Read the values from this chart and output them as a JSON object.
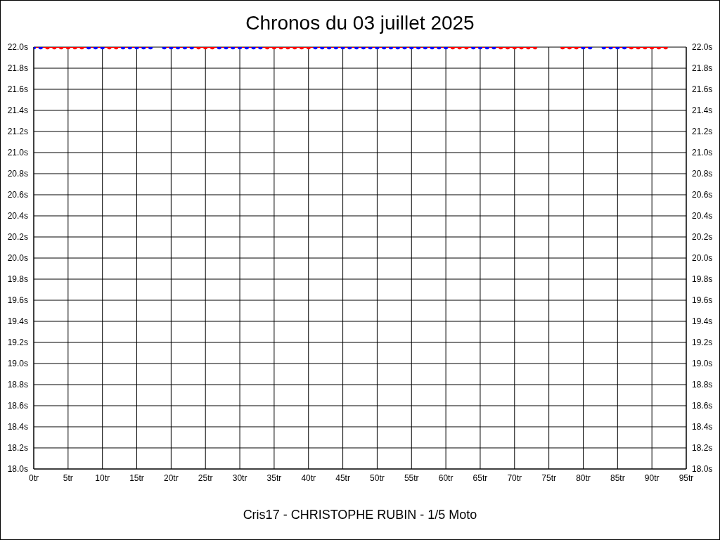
{
  "chart_data": {
    "type": "line",
    "title": "Chronos du 03 juillet 2025",
    "annotations": [
      "Cris17 - CHRISTOPHE RUBIN - 1/5 Moto"
    ],
    "x": [
      0,
      1,
      2,
      3,
      4,
      5,
      6,
      7,
      8,
      9,
      10,
      11,
      12,
      13,
      14,
      15,
      16,
      17,
      18,
      19,
      20,
      21,
      22,
      23,
      24,
      25,
      26,
      27,
      28,
      29,
      30,
      31,
      32,
      33,
      34,
      35,
      36,
      37,
      38,
      39,
      40,
      41,
      42,
      43,
      44,
      45,
      46,
      47,
      48,
      49,
      50,
      51,
      52,
      53,
      54,
      55,
      56,
      57,
      58,
      59,
      60,
      61,
      62,
      63,
      64,
      65,
      66,
      67,
      68,
      69,
      70,
      71,
      72,
      73,
      74,
      75,
      76,
      77,
      78,
      79,
      80,
      81,
      82,
      83,
      84,
      85,
      86,
      87,
      88,
      89,
      90,
      91,
      92
    ],
    "series": [
      {
        "color": "#ff0000",
        "values": [
          22,
          22,
          22,
          22,
          22,
          22,
          22,
          22,
          22,
          22,
          22,
          22,
          22,
          22,
          22,
          22,
          22,
          22,
          null,
          22,
          22,
          22,
          22,
          22,
          22,
          22,
          22,
          22,
          22,
          22,
          22,
          22,
          22,
          22,
          22,
          22,
          22,
          22,
          22,
          22,
          22,
          22,
          22,
          22,
          22,
          22,
          22,
          22,
          22,
          22,
          22,
          22,
          22,
          22,
          22,
          22,
          22,
          22,
          22,
          22,
          22,
          22,
          22,
          22,
          22,
          22,
          22,
          22,
          22,
          22,
          22,
          22,
          22,
          22,
          null,
          null,
          null,
          22,
          22,
          22,
          22,
          22,
          null,
          22,
          22,
          22,
          22,
          22,
          22,
          22,
          22,
          22,
          22
        ],
        "colors": [
          "#0000ff",
          "#0000ff",
          "#ff0000",
          "#ff0000",
          "#ff0000",
          "#ff0000",
          "#ff0000",
          "#ff0000",
          "#0000ff",
          "#0000ff",
          "#0000ff",
          "#ff0000",
          "#ff0000",
          "#0000ff",
          "#0000ff",
          "#0000ff",
          "#0000ff",
          "#0000ff",
          null,
          "#0000ff",
          "#0000ff",
          "#0000ff",
          "#0000ff",
          "#0000ff",
          "#ff0000",
          "#ff0000",
          "#ff0000",
          "#0000ff",
          "#0000ff",
          "#0000ff",
          "#0000ff",
          "#0000ff",
          "#0000ff",
          "#0000ff",
          "#ff0000",
          "#ff0000",
          "#ff0000",
          "#ff0000",
          "#ff0000",
          "#ff0000",
          "#ff0000",
          "#0000ff",
          "#0000ff",
          "#0000ff",
          "#0000ff",
          "#0000ff",
          "#0000ff",
          "#0000ff",
          "#0000ff",
          "#0000ff",
          "#0000ff",
          "#0000ff",
          "#0000ff",
          "#0000ff",
          "#0000ff",
          "#0000ff",
          "#0000ff",
          "#0000ff",
          "#0000ff",
          "#0000ff",
          "#0000ff",
          "#ff0000",
          "#ff0000",
          "#ff0000",
          "#0000ff",
          "#0000ff",
          "#0000ff",
          "#0000ff",
          "#ff0000",
          "#ff0000",
          "#ff0000",
          "#ff0000",
          "#ff0000",
          "#ff0000",
          null,
          null,
          null,
          "#ff0000",
          "#ff0000",
          "#ff0000",
          "#0000ff",
          "#0000ff",
          null,
          "#0000ff",
          "#0000ff",
          "#0000ff",
          "#0000ff",
          "#ff0000",
          "#ff0000",
          "#ff0000",
          "#ff0000",
          "#ff0000",
          "#ff0000"
        ]
      }
    ],
    "xlim": [
      0,
      95
    ],
    "xticks": [
      {
        "value": 0,
        "label": "0tr"
      },
      {
        "value": 5,
        "label": "5tr"
      },
      {
        "value": 10,
        "label": "10tr"
      },
      {
        "value": 15,
        "label": "15tr"
      },
      {
        "value": 20,
        "label": "20tr"
      },
      {
        "value": 25,
        "label": "25tr"
      },
      {
        "value": 30,
        "label": "30tr"
      },
      {
        "value": 35,
        "label": "35tr"
      },
      {
        "value": 40,
        "label": "40tr"
      },
      {
        "value": 45,
        "label": "45tr"
      },
      {
        "value": 50,
        "label": "50tr"
      },
      {
        "value": 55,
        "label": "55tr"
      },
      {
        "value": 60,
        "label": "60tr"
      },
      {
        "value": 65,
        "label": "65tr"
      },
      {
        "value": 70,
        "label": "70tr"
      },
      {
        "value": 75,
        "label": "75tr"
      },
      {
        "value": 80,
        "label": "80tr"
      },
      {
        "value": 85,
        "label": "85tr"
      },
      {
        "value": 90,
        "label": "90tr"
      },
      {
        "value": 95,
        "label": "95tr"
      }
    ],
    "ylim": [
      18,
      22
    ],
    "yticks": [
      {
        "value": 18,
        "label": "18.0s"
      },
      {
        "value": 18.2,
        "label": "18.2s"
      },
      {
        "value": 18.4,
        "label": "18.4s"
      },
      {
        "value": 18.6,
        "label": "18.6s"
      },
      {
        "value": 18.8,
        "label": "18.8s"
      },
      {
        "value": 19,
        "label": "19.0s"
      },
      {
        "value": 19.2,
        "label": "19.2s"
      },
      {
        "value": 19.4,
        "label": "19.4s"
      },
      {
        "value": 19.6,
        "label": "19.6s"
      },
      {
        "value": 19.8,
        "label": "19.8s"
      },
      {
        "value": 20,
        "label": "20.0s"
      },
      {
        "value": 20.2,
        "label": "20.2s"
      },
      {
        "value": 20.4,
        "label": "20.4s"
      },
      {
        "value": 20.6,
        "label": "20.6s"
      },
      {
        "value": 20.8,
        "label": "20.8s"
      },
      {
        "value": 21,
        "label": "21.0s"
      },
      {
        "value": 21.2,
        "label": "21.2s"
      },
      {
        "value": 21.4,
        "label": "21.4s"
      },
      {
        "value": 21.6,
        "label": "21.6s"
      },
      {
        "value": 21.8,
        "label": "21.8s"
      },
      {
        "value": 22,
        "label": "22.0s"
      }
    ],
    "y2lim": [
      18,
      22
    ],
    "y2ticks": [
      {
        "value": 18,
        "label": "18.0s"
      },
      {
        "value": 18.2,
        "label": "18.2s"
      },
      {
        "value": 18.4,
        "label": "18.4s"
      },
      {
        "value": 18.6,
        "label": "18.6s"
      },
      {
        "value": 18.8,
        "label": "18.8s"
      },
      {
        "value": 19,
        "label": "19.0s"
      },
      {
        "value": 19.2,
        "label": "19.2s"
      },
      {
        "value": 19.4,
        "label": "19.4s"
      },
      {
        "value": 19.6,
        "label": "19.6s"
      },
      {
        "value": 19.8,
        "label": "19.8s"
      },
      {
        "value": 20,
        "label": "20.0s"
      },
      {
        "value": 20.2,
        "label": "20.2s"
      },
      {
        "value": 20.4,
        "label": "20.4s"
      },
      {
        "value": 20.6,
        "label": "20.6s"
      },
      {
        "value": 20.8,
        "label": "20.8s"
      },
      {
        "value": 21,
        "label": "21.0s"
      },
      {
        "value": 21.2,
        "label": "21.2s"
      },
      {
        "value": 21.4,
        "label": "21.4s"
      },
      {
        "value": 21.6,
        "label": "21.6s"
      },
      {
        "value": 21.8,
        "label": "21.8s"
      },
      {
        "value": 22,
        "label": "22.0s"
      }
    ],
    "grid": true,
    "marker": "circle",
    "line_style": "solid",
    "legend": false
  }
}
